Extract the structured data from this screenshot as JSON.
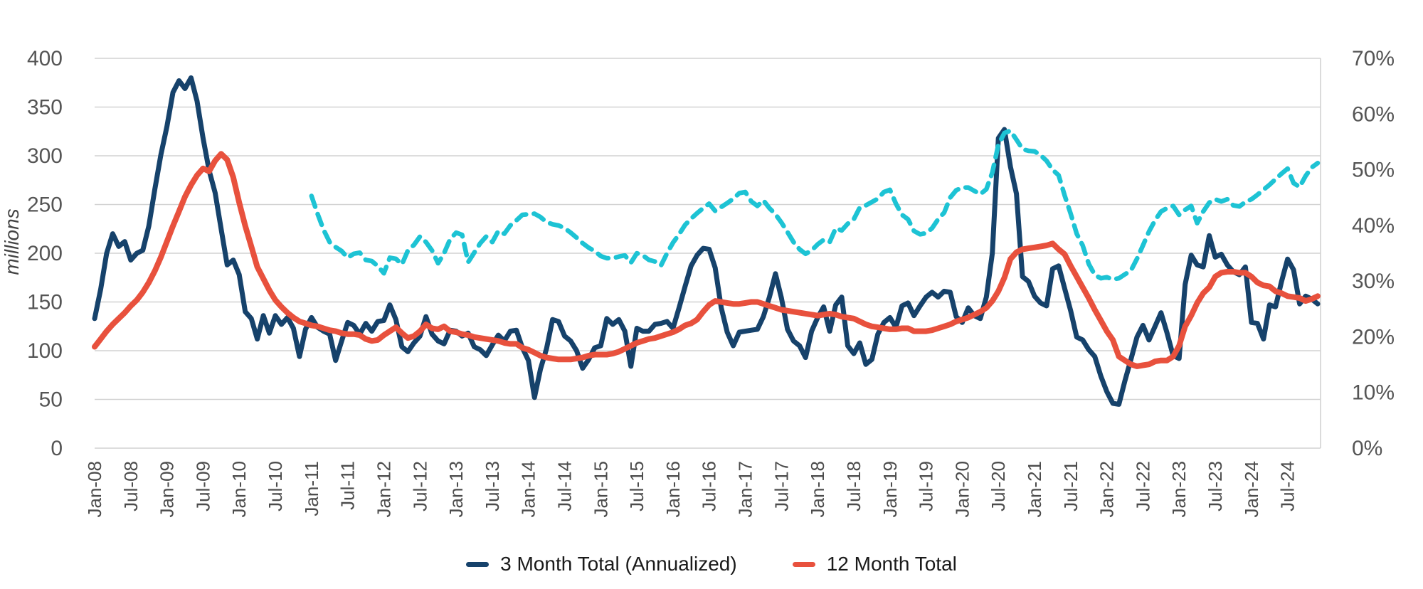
{
  "chart_data": {
    "type": "line",
    "title": "",
    "ylabel_left": "millions",
    "grid": "horizontal",
    "legend_position": "bottom",
    "y_left": {
      "min": 0,
      "max": 400,
      "step": 50,
      "tick_labels": [
        "0",
        "50",
        "100",
        "150",
        "200",
        "250",
        "300",
        "350",
        "400"
      ]
    },
    "y_right": {
      "min": 0,
      "max": 70,
      "step": 10,
      "tick_labels": [
        "0%",
        "10%",
        "20%",
        "30%",
        "40%",
        "50%",
        "60%",
        "70%"
      ]
    },
    "x_start": "Jan-08",
    "x_end": "Dec-24",
    "x_tick_every_months": 6,
    "x_tick_labels": [
      "Jan-08",
      "Jul-08",
      "Jan-09",
      "Jul-09",
      "Jan-10",
      "Jul-10",
      "Jan-11",
      "Jul-11",
      "Jan-12",
      "Jul-12",
      "Jan-13",
      "Jul-13",
      "Jan-14",
      "Jul-14",
      "Jan-15",
      "Jul-15",
      "Jan-16",
      "Jul-16",
      "Jan-17",
      "Jul-17",
      "Jan-18",
      "Jul-18",
      "Jan-19",
      "Jul-19",
      "Jan-20",
      "Jul-20",
      "Jan-21",
      "Jul-21",
      "Jan-22",
      "Jul-22",
      "Jan-23",
      "Jul-23",
      "Jan-24",
      "Jul-24"
    ],
    "series": [
      {
        "name": "3 Month Total (Annualized)",
        "color": "#16426b",
        "dash": false,
        "axis": "left",
        "in_legend": true,
        "stroke_width": 7,
        "values": [
          133,
          163,
          200,
          220,
          207,
          212,
          193,
          200,
          203,
          228,
          266,
          301,
          330,
          365,
          377,
          369,
          380,
          356,
          318,
          285,
          262,
          225,
          188,
          193,
          178,
          140,
          133,
          112,
          136,
          118,
          136,
          127,
          134,
          123,
          94,
          122,
          134,
          124,
          120,
          117,
          90,
          110,
          129,
          126,
          117,
          128,
          120,
          130,
          131,
          147,
          132,
          104,
          99,
          108,
          115,
          135,
          117,
          110,
          107,
          121,
          120,
          115,
          118,
          104,
          101,
          95,
          106,
          116,
          110,
          120,
          121,
          103,
          90,
          52,
          81,
          102,
          132,
          130,
          115,
          110,
          100,
          82,
          91,
          103,
          105,
          133,
          127,
          132,
          120,
          84,
          123,
          120,
          120,
          127,
          128,
          130,
          123,
          144,
          166,
          187,
          198,
          205,
          204,
          185,
          144,
          119,
          105,
          119,
          120,
          121,
          122,
          135,
          155,
          179,
          154,
          122,
          110,
          105,
          93,
          120,
          134,
          145,
          120,
          147,
          155,
          105,
          97,
          108,
          86,
          91,
          117,
          129,
          134,
          124,
          146,
          149,
          136,
          146,
          155,
          160,
          155,
          161,
          160,
          135,
          129,
          144,
          136,
          133,
          155,
          200,
          318,
          327,
          289,
          261,
          176,
          171,
          156,
          149,
          146,
          184,
          187,
          164,
          141,
          114,
          111,
          101,
          94,
          74,
          58,
          46,
          45,
          69,
          91,
          114,
          126,
          111,
          125,
          139,
          118,
          95,
          92,
          168,
          198,
          188,
          186,
          218,
          196,
          199,
          188,
          181,
          178,
          186,
          129,
          128,
          112,
          147,
          145,
          171,
          194,
          183,
          148,
          156,
          153,
          148
        ]
      },
      {
        "name": "12 Month Total",
        "color": "#e8513d",
        "dash": false,
        "axis": "left",
        "in_legend": true,
        "stroke_width": 8,
        "values": [
          104,
          112,
          120,
          127,
          133,
          139,
          146,
          152,
          160,
          170,
          182,
          196,
          212,
          228,
          243,
          258,
          270,
          280,
          287,
          284,
          295,
          302,
          296,
          278,
          252,
          228,
          207,
          186,
          174,
          162,
          152,
          145,
          139,
          134,
          130,
          128,
          126,
          125,
          123,
          121,
          120,
          118,
          117,
          117,
          116,
          112,
          110,
          111,
          116,
          120,
          124,
          118,
          113,
          115,
          120,
          127,
          123,
          122,
          125,
          120,
          119,
          117,
          116,
          114,
          113,
          112,
          111,
          110,
          108,
          107,
          107,
          103,
          101,
          98,
          95,
          93,
          92,
          91,
          91,
          91,
          92,
          93,
          95,
          96,
          96,
          96,
          97,
          99,
          102,
          105,
          108,
          110,
          112,
          113,
          115,
          117,
          119,
          122,
          126,
          128,
          132,
          140,
          147,
          151,
          150,
          149,
          148,
          148,
          149,
          150,
          150,
          148,
          146,
          144,
          142,
          141,
          140,
          139,
          138,
          137,
          136,
          137,
          138,
          137,
          135,
          134,
          133,
          130,
          127,
          125,
          124,
          123,
          122,
          122,
          123,
          123,
          120,
          120,
          120,
          121,
          123,
          125,
          127,
          130,
          132,
          134,
          137,
          140,
          144,
          151,
          161,
          175,
          194,
          201,
          204,
          205,
          206,
          207,
          208,
          210,
          204,
          199,
          187,
          176,
          165,
          154,
          142,
          131,
          120,
          111,
          94,
          90,
          86,
          84,
          85,
          86,
          89,
          90,
          90,
          94,
          105,
          125,
          136,
          149,
          159,
          165,
          176,
          180,
          181,
          181,
          180,
          180,
          176,
          170,
          167,
          166,
          161,
          159,
          156,
          155,
          154,
          151,
          153,
          156
        ]
      },
      {
        "name": "",
        "color": "#1dc3d4",
        "dash": true,
        "axis": "right",
        "in_legend": false,
        "stroke_width": 6.5,
        "values": [
          null,
          null,
          null,
          null,
          null,
          null,
          null,
          null,
          null,
          null,
          null,
          null,
          null,
          null,
          null,
          null,
          null,
          null,
          null,
          null,
          null,
          null,
          null,
          null,
          null,
          null,
          null,
          null,
          null,
          null,
          null,
          null,
          null,
          null,
          null,
          null,
          45.3,
          42.1,
          39.2,
          37.0,
          36.1,
          35.4,
          34.2,
          34.9,
          35.1,
          33.8,
          33.6,
          32.7,
          31.4,
          34.2,
          34.0,
          33.0,
          35.5,
          36.5,
          38.0,
          37.0,
          35.5,
          33.2,
          35.0,
          37.5,
          38.7,
          38.3,
          33.4,
          35.1,
          36.8,
          38.0,
          37.0,
          39.0,
          38.5,
          40.0,
          40.9,
          41.9,
          42.0,
          42.1,
          41.5,
          40.6,
          40.2,
          40.0,
          39.5,
          38.7,
          37.8,
          36.8,
          36.0,
          35.4,
          34.5,
          34.1,
          34.1,
          34.4,
          34.6,
          33.3,
          35.0,
          34.6,
          33.8,
          33.5,
          32.8,
          35.0,
          36.9,
          38.4,
          40.1,
          41.2,
          42.2,
          43.1,
          43.9,
          42.6,
          43.3,
          44.0,
          44.8,
          45.8,
          46.0,
          44.3,
          43.5,
          44.5,
          43.1,
          42.0,
          40.5,
          38.8,
          37.0,
          35.7,
          34.9,
          35.5,
          36.6,
          37.4,
          37.0,
          39.5,
          39.1,
          40.3,
          41.1,
          43.2,
          43.6,
          44.2,
          44.8,
          46.0,
          46.4,
          43.9,
          41.9,
          41.1,
          39.0,
          38.4,
          38.6,
          39.5,
          41.1,
          42.3,
          45.0,
          46.3,
          46.8,
          46.8,
          46.2,
          45.6,
          46.5,
          49.5,
          54.5,
          56.6,
          57.0,
          55.4,
          53.7,
          53.4,
          53.3,
          52.6,
          51.6,
          50.0,
          49.0,
          45.4,
          42.1,
          38.5,
          36.4,
          33.1,
          31.1,
          30.5,
          30.7,
          30.3,
          30.5,
          31.2,
          31.9,
          34.0,
          36.4,
          38.9,
          40.9,
          42.5,
          43.1,
          43.5,
          41.9,
          42.8,
          43.5,
          40.4,
          42.5,
          44.1,
          44.7,
          44.3,
          44.7,
          43.6,
          43.4,
          44.2,
          44.7,
          45.5,
          46.4,
          47.3,
          48.3,
          49.3,
          50.2,
          47.6,
          46.9,
          48.9,
          50.4,
          51.2
        ]
      }
    ]
  },
  "colors": {
    "grid": "#d2d2d2",
    "axis_text_y": "#555555",
    "axis_text_x": "#4c4c4c",
    "axis_title": "#444444",
    "legend_text": "#1a1a1a"
  },
  "legend": {
    "item1": "3 Month Total (Annualized)",
    "item2": "12 Month Total"
  }
}
